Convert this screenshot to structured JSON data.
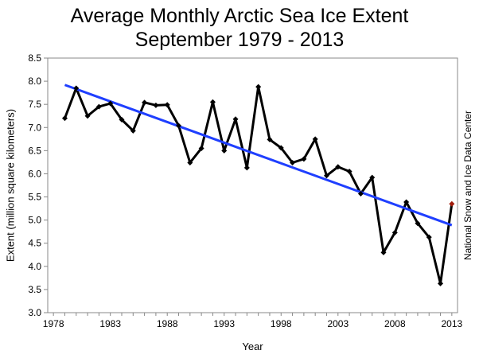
{
  "chart_data": {
    "type": "line",
    "title": "Average Monthly Arctic Sea Ice Extent",
    "subtitle": "September 1979 - 2013",
    "xlabel": "Year",
    "ylabel": "Extent (million square kilometers)",
    "credit": "National Snow and Ice Data Center",
    "xlim": [
      1977.5,
      2013.5
    ],
    "ylim": [
      3.0,
      8.5
    ],
    "x_ticks": [
      1978,
      1983,
      1988,
      1993,
      1998,
      2003,
      2008,
      2013
    ],
    "y_ticks": [
      3.0,
      3.5,
      4.0,
      4.5,
      5.0,
      5.5,
      6.0,
      6.5,
      7.0,
      7.5,
      8.0,
      8.5
    ],
    "grid": false,
    "series": [
      {
        "color": "#000000",
        "highlight_last_color": "#a01a0a",
        "x": [
          1979,
          1980,
          1981,
          1982,
          1983,
          1984,
          1985,
          1986,
          1987,
          1988,
          1989,
          1990,
          1991,
          1992,
          1993,
          1994,
          1995,
          1996,
          1997,
          1998,
          1999,
          2000,
          2001,
          2002,
          2003,
          2004,
          2005,
          2006,
          2007,
          2008,
          2009,
          2010,
          2011,
          2012,
          2013
        ],
        "values": [
          7.2,
          7.85,
          7.25,
          7.45,
          7.52,
          7.17,
          6.93,
          7.54,
          7.48,
          7.49,
          7.04,
          6.24,
          6.55,
          7.55,
          6.5,
          7.18,
          6.13,
          7.88,
          6.74,
          6.56,
          6.24,
          6.32,
          6.75,
          5.96,
          6.15,
          6.05,
          5.57,
          5.92,
          4.3,
          4.73,
          5.39,
          4.93,
          4.63,
          3.63,
          5.35
        ]
      }
    ],
    "trend": {
      "color": "#1f3fff",
      "x": [
        1979,
        2013
      ],
      "values": [
        7.92,
        4.89
      ]
    }
  }
}
